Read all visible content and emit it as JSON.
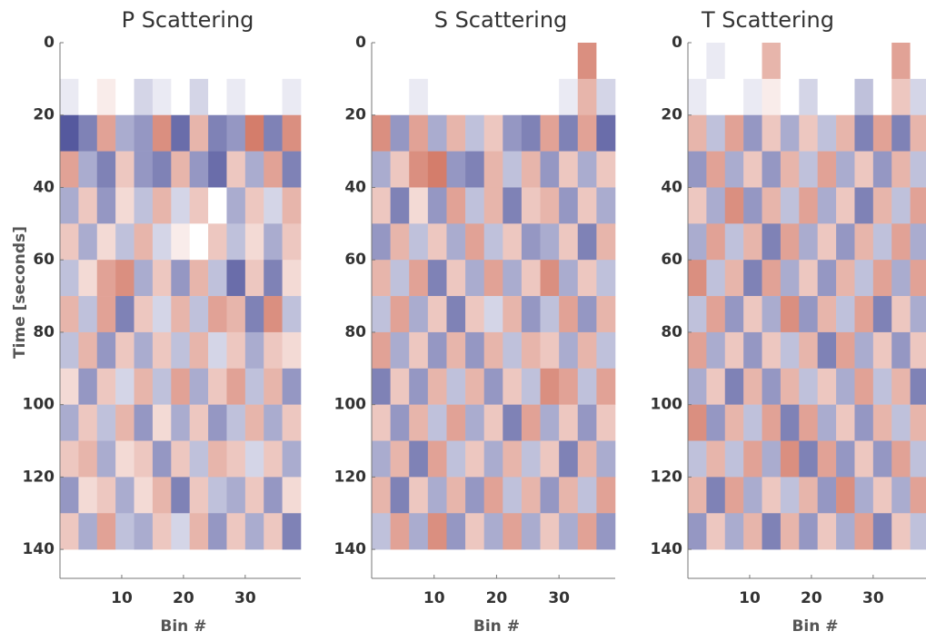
{
  "chart_data": [
    {
      "type": "heatmap",
      "title": "P Scattering",
      "xlabel": "Bin #",
      "ylabel": "Time [seconds]",
      "xlim": [
        0,
        39
      ],
      "ylim": [
        0,
        148
      ],
      "y_inverted": true,
      "xticks": [
        10,
        20,
        30
      ],
      "yticks": [
        0,
        20,
        40,
        60,
        80,
        100,
        120,
        140
      ],
      "colors": [
        "#2a2f86",
        "#ffffff",
        "#c2452c"
      ],
      "x": [
        1.5,
        4.5,
        7.5,
        10.5,
        13.5,
        16.5,
        19.5,
        22.5,
        25.5,
        28.5,
        31.5,
        34.5,
        37.5
      ],
      "y": [
        5,
        15,
        25,
        35,
        45,
        55,
        65,
        75,
        85,
        95,
        105,
        115,
        125,
        135
      ],
      "values": [
        [
          0,
          0,
          0,
          0,
          0,
          0,
          0,
          0,
          0,
          0,
          0,
          0,
          0
        ],
        [
          -0.1,
          0,
          0.1,
          0,
          -0.2,
          -0.1,
          0,
          -0.2,
          0,
          -0.1,
          0,
          0,
          -0.1
        ],
        [
          -0.8,
          -0.6,
          0.5,
          -0.4,
          -0.5,
          0.6,
          -0.7,
          0.4,
          -0.6,
          -0.5,
          0.7,
          -0.6,
          0.6
        ],
        [
          0.5,
          -0.4,
          -0.6,
          0.3,
          -0.5,
          -0.6,
          0.4,
          -0.5,
          -0.7,
          0.3,
          -0.4,
          0.5,
          -0.6
        ],
        [
          -0.4,
          0.3,
          -0.5,
          0.2,
          -0.3,
          0.4,
          -0.2,
          0.3,
          0,
          -0.4,
          0.3,
          -0.2,
          0.4
        ],
        [
          0.3,
          -0.4,
          0.2,
          -0.3,
          0.4,
          -0.2,
          0.1,
          0,
          0.3,
          -0.3,
          0.2,
          -0.4,
          0.3
        ],
        [
          -0.3,
          0.2,
          0.5,
          0.6,
          -0.4,
          0.3,
          -0.5,
          0.4,
          -0.3,
          -0.7,
          0.3,
          -0.6,
          0.2
        ],
        [
          0.4,
          -0.3,
          0.5,
          -0.6,
          0.3,
          -0.2,
          0.4,
          -0.3,
          0.5,
          0.4,
          -0.6,
          0.6,
          -0.3
        ],
        [
          -0.3,
          0.4,
          -0.5,
          0.3,
          -0.4,
          0.3,
          -0.3,
          0.4,
          -0.2,
          0.3,
          -0.4,
          0.3,
          0.2
        ],
        [
          0.2,
          -0.5,
          0.3,
          -0.2,
          0.4,
          -0.3,
          0.5,
          -0.4,
          0.3,
          0.5,
          -0.3,
          0.4,
          -0.5
        ],
        [
          -0.4,
          0.3,
          -0.3,
          0.4,
          -0.5,
          0.2,
          -0.4,
          0.3,
          -0.5,
          -0.3,
          0.4,
          -0.4,
          0.3
        ],
        [
          0.3,
          0.4,
          -0.4,
          0.2,
          0.3,
          -0.5,
          0.3,
          -0.3,
          0.4,
          0.3,
          -0.2,
          0.3,
          -0.4
        ],
        [
          -0.5,
          0.2,
          0.3,
          -0.4,
          0.2,
          0.4,
          -0.6,
          0.3,
          -0.3,
          -0.4,
          0.3,
          -0.5,
          0.2
        ],
        [
          0.3,
          -0.4,
          0.5,
          -0.3,
          -0.4,
          0.3,
          -0.2,
          0.4,
          -0.5,
          0.3,
          -0.4,
          0.3,
          -0.6
        ]
      ]
    },
    {
      "type": "heatmap",
      "title": "S Scattering",
      "xlabel": "Bin #",
      "xlim": [
        0,
        39
      ],
      "ylim": [
        0,
        148
      ],
      "y_inverted": true,
      "xticks": [
        10,
        20,
        30
      ],
      "yticks": [
        0,
        20,
        40,
        60,
        80,
        100,
        120,
        140
      ],
      "colors": [
        "#2a2f86",
        "#ffffff",
        "#c2452c"
      ],
      "x": [
        1.5,
        4.5,
        7.5,
        10.5,
        13.5,
        16.5,
        19.5,
        22.5,
        25.5,
        28.5,
        31.5,
        34.5,
        37.5
      ],
      "y": [
        5,
        15,
        25,
        35,
        45,
        55,
        65,
        75,
        85,
        95,
        105,
        115,
        125,
        135
      ],
      "values": [
        [
          0,
          0,
          0,
          0,
          0,
          0,
          0,
          0,
          0,
          0,
          0,
          0.6,
          0
        ],
        [
          0,
          0,
          -0.1,
          0,
          0,
          0,
          0,
          0,
          0,
          0,
          -0.1,
          0.4,
          -0.2
        ],
        [
          0.6,
          -0.5,
          0.5,
          -0.4,
          0.4,
          -0.3,
          0.3,
          -0.5,
          -0.6,
          0.5,
          -0.6,
          0.5,
          -0.7
        ],
        [
          -0.4,
          0.3,
          0.6,
          0.7,
          -0.5,
          -0.6,
          0.4,
          -0.3,
          0.4,
          -0.5,
          0.3,
          -0.4,
          0.3
        ],
        [
          0.3,
          -0.6,
          0.2,
          -0.5,
          0.5,
          -0.3,
          0.4,
          -0.6,
          0.3,
          0.4,
          -0.5,
          0.3,
          -0.4
        ],
        [
          -0.5,
          0.4,
          -0.3,
          0.3,
          -0.4,
          0.5,
          -0.3,
          0.3,
          -0.5,
          -0.4,
          0.3,
          -0.6,
          0.4
        ],
        [
          0.4,
          -0.3,
          0.5,
          -0.6,
          0.3,
          -0.4,
          0.5,
          -0.4,
          0.3,
          0.6,
          -0.4,
          0.3,
          -0.3
        ],
        [
          -0.3,
          0.5,
          -0.4,
          0.3,
          -0.6,
          0.3,
          -0.2,
          0.4,
          -0.5,
          -0.3,
          0.5,
          -0.5,
          0.4
        ],
        [
          0.5,
          -0.4,
          0.3,
          -0.5,
          0.4,
          -0.5,
          0.4,
          -0.3,
          0.4,
          0.3,
          -0.4,
          0.4,
          -0.3
        ],
        [
          -0.6,
          0.3,
          -0.5,
          0.4,
          -0.3,
          0.4,
          -0.5,
          0.3,
          -0.3,
          0.6,
          0.5,
          -0.3,
          0.5
        ],
        [
          0.3,
          -0.5,
          0.4,
          -0.3,
          0.5,
          -0.4,
          0.3,
          -0.6,
          0.5,
          -0.4,
          0.3,
          -0.5,
          0.3
        ],
        [
          -0.4,
          0.4,
          -0.6,
          0.5,
          -0.3,
          0.3,
          -0.4,
          0.4,
          -0.3,
          0.3,
          -0.6,
          0.4,
          -0.4
        ],
        [
          0.4,
          -0.6,
          0.3,
          -0.4,
          0.4,
          -0.5,
          0.5,
          -0.3,
          0.4,
          -0.5,
          0.4,
          -0.3,
          0.5
        ],
        [
          -0.3,
          0.5,
          -0.4,
          0.6,
          -0.5,
          0.3,
          -0.4,
          0.5,
          -0.4,
          0.3,
          -0.4,
          0.5,
          -0.5
        ]
      ]
    },
    {
      "type": "heatmap",
      "title": "T Scattering",
      "xlabel": "Bin #",
      "xlim": [
        0,
        39
      ],
      "ylim": [
        0,
        148
      ],
      "y_inverted": true,
      "xticks": [
        10,
        20,
        30
      ],
      "yticks": [
        0,
        20,
        40,
        60,
        80,
        100,
        120,
        140
      ],
      "colors": [
        "#2a2f86",
        "#ffffff",
        "#c2452c"
      ],
      "x": [
        1.5,
        4.5,
        7.5,
        10.5,
        13.5,
        16.5,
        19.5,
        22.5,
        25.5,
        28.5,
        31.5,
        34.5,
        37.5
      ],
      "y": [
        5,
        15,
        25,
        35,
        45,
        55,
        65,
        75,
        85,
        95,
        105,
        115,
        125,
        135
      ],
      "values": [
        [
          0,
          -0.1,
          0,
          0,
          0.4,
          0,
          0,
          0,
          0,
          0,
          0,
          0.5,
          0
        ],
        [
          -0.1,
          0,
          0,
          -0.1,
          0.1,
          0,
          -0.2,
          0,
          0,
          -0.3,
          0,
          0.3,
          -0.2
        ],
        [
          0.4,
          -0.3,
          0.5,
          -0.5,
          0.3,
          -0.4,
          0.3,
          -0.3,
          0.4,
          -0.6,
          0.5,
          -0.6,
          0.4
        ],
        [
          -0.5,
          0.5,
          -0.4,
          0.3,
          -0.5,
          0.4,
          -0.3,
          0.5,
          -0.4,
          0.3,
          -0.5,
          0.4,
          -0.3
        ],
        [
          0.3,
          -0.4,
          0.6,
          -0.5,
          0.4,
          -0.3,
          0.5,
          -0.4,
          0.3,
          -0.6,
          0.4,
          -0.3,
          0.5
        ],
        [
          -0.4,
          0.5,
          -0.3,
          0.4,
          -0.6,
          0.5,
          -0.4,
          0.3,
          -0.5,
          0.4,
          -0.3,
          0.5,
          -0.4
        ],
        [
          0.6,
          -0.3,
          0.4,
          -0.6,
          0.5,
          -0.4,
          0.3,
          -0.5,
          0.4,
          -0.3,
          0.5,
          -0.4,
          0.5
        ],
        [
          -0.3,
          0.5,
          -0.5,
          0.3,
          -0.4,
          0.6,
          -0.5,
          0.4,
          -0.3,
          0.5,
          -0.6,
          0.3,
          -0.4
        ],
        [
          0.5,
          -0.4,
          0.3,
          -0.5,
          0.3,
          -0.3,
          0.4,
          -0.6,
          0.5,
          -0.4,
          0.3,
          -0.5,
          0.3
        ],
        [
          -0.4,
          0.3,
          -0.6,
          0.4,
          -0.5,
          0.4,
          -0.3,
          0.3,
          -0.4,
          0.5,
          -0.3,
          0.4,
          -0.6
        ],
        [
          0.6,
          -0.5,
          0.4,
          -0.3,
          0.5,
          -0.6,
          0.5,
          -0.4,
          0.3,
          -0.5,
          0.4,
          -0.3,
          0.4
        ],
        [
          -0.3,
          0.4,
          -0.3,
          0.5,
          -0.4,
          0.6,
          -0.6,
          0.5,
          -0.5,
          0.3,
          -0.5,
          0.5,
          -0.3
        ],
        [
          0.4,
          -0.6,
          0.5,
          -0.4,
          0.3,
          -0.3,
          0.4,
          -0.5,
          0.6,
          -0.4,
          0.3,
          -0.4,
          0.5
        ],
        [
          -0.5,
          0.3,
          -0.4,
          0.4,
          -0.6,
          0.4,
          -0.5,
          0.3,
          -0.4,
          0.5,
          -0.6,
          0.3,
          -0.3
        ]
      ]
    }
  ]
}
